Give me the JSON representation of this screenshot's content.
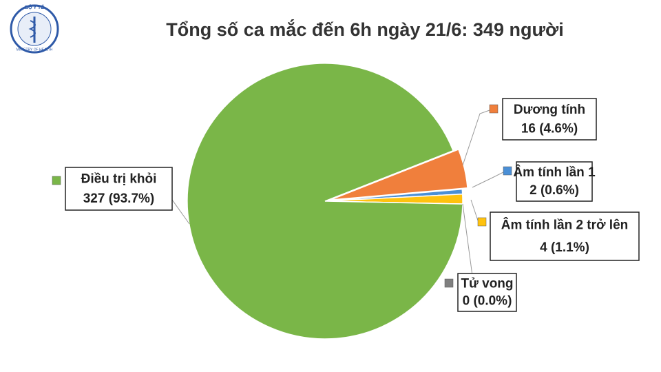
{
  "logo": {
    "top": "BỘ Y TẾ",
    "bottom": "MINISTRY OF HEALTH"
  },
  "chart_data": {
    "type": "pie",
    "title": "Tổng số ca mắc đến 6h ngày 21/6: 349 người",
    "categories": [
      "Dương tính",
      "Âm tính lần 1",
      "Âm tính lần 2 trở lên",
      "Tử vong",
      "Điều trị khỏi"
    ],
    "values": [
      16,
      2,
      4,
      0,
      327
    ],
    "value_labels": [
      "16 (4.6%)",
      "2 (0.6%)",
      "4 (1.1%)",
      "0 (0.0%)",
      "327 (93.7%)"
    ],
    "colors": [
      "#f07f3c",
      "#4a8fd6",
      "#ffc20e",
      "#808080",
      "#7ab648"
    ]
  }
}
